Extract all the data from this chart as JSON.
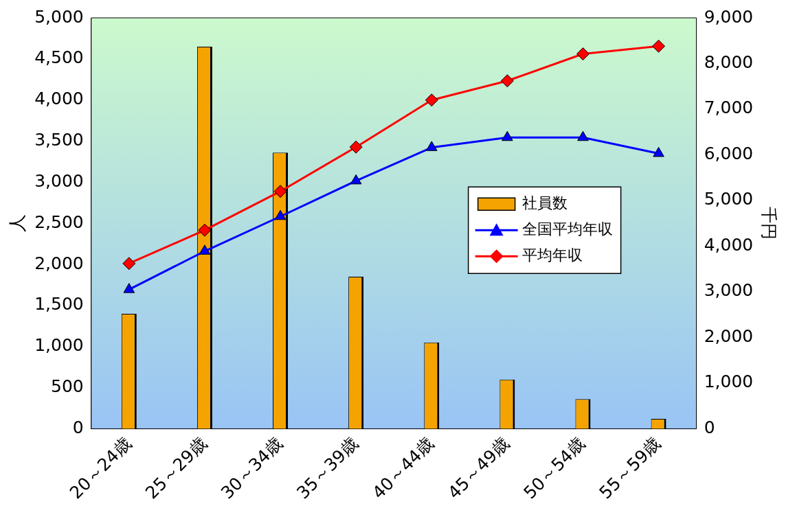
{
  "chart_data": {
    "type": "bar",
    "categories": [
      "20～24歳",
      "25～29歳",
      "30～34歳",
      "35～39歳",
      "40～44歳",
      "45～49歳",
      "50～54歳",
      "55～59歳"
    ],
    "series": [
      {
        "name": "社員数",
        "color": "#f5a300",
        "values": [
          1400,
          4650,
          3360,
          1850,
          1050,
          600,
          360,
          120
        ]
      },
      {
        "name": "全国平均年収",
        "type": "line",
        "axis": "y2",
        "color": "#0000ff",
        "marker": "triangle",
        "values": [
          3050,
          3890,
          4650,
          5430,
          6160,
          6380,
          6380,
          6030
        ]
      },
      {
        "name": "平均年収",
        "type": "line",
        "axis": "y2",
        "color": "#ff0000",
        "marker": "diamond",
        "values": [
          3620,
          4350,
          5200,
          6170,
          7200,
          7620,
          8210,
          8380
        ]
      }
    ],
    "ylabel": "人",
    "y2label": "千円",
    "ylim": [
      0,
      5000
    ],
    "yticks": [
      0,
      500,
      {
        "value": 1000,
        "label": "1,000"
      },
      {
        "value": 1500,
        "label": "1,500"
      },
      {
        "value": 2000,
        "label": "2,000"
      },
      {
        "value": 2500,
        "label": "2,500"
      },
      {
        "value": 3000,
        "label": "3,000"
      },
      {
        "value": 3500,
        "label": "3,500"
      },
      {
        "value": 4000,
        "label": "4,000"
      },
      {
        "value": 4500,
        "label": "4,500"
      },
      {
        "value": 5000,
        "label": "5,000"
      }
    ],
    "y2lim": [
      0,
      9000
    ],
    "y2ticks": [
      0,
      {
        "value": 1000,
        "label": "1,000"
      },
      {
        "value": 2000,
        "label": "2,000"
      },
      {
        "value": 3000,
        "label": "3,000"
      },
      {
        "value": 4000,
        "label": "4,000"
      },
      {
        "value": 5000,
        "label": "5,000"
      },
      {
        "value": 6000,
        "label": "6,000"
      },
      {
        "value": 7000,
        "label": "7,000"
      },
      {
        "value": 8000,
        "label": "8,000"
      },
      {
        "value": 9000,
        "label": "9,000"
      }
    ],
    "grid": false,
    "legend": "right"
  }
}
